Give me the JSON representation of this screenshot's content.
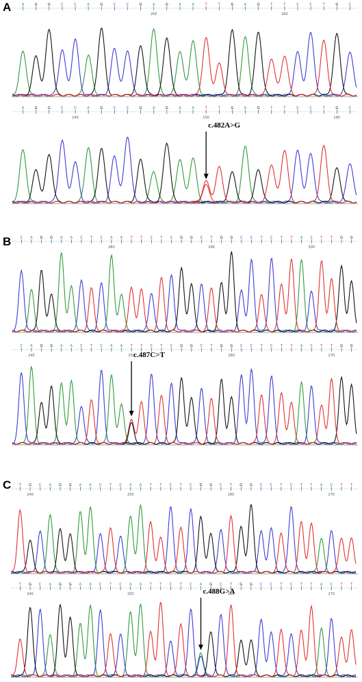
{
  "colors": {
    "A": "#2e9b3a",
    "C": "#3b3bd6",
    "G": "#111111",
    "T": "#e03030"
  },
  "panels": [
    {
      "letter": "A",
      "tracks": [
        {
          "sequence": "AGGCCAGCCGAGAATTGAGTTCCTGC",
          "positions": [
            {
              "label": "250",
              "index": 10
            },
            {
              "label": "260",
              "index": 20
            }
          ]
        },
        {
          "sequence": "AGGCCAGCCGAGAATTGAGTTCCTGC",
          "positions": [
            {
              "label": "140",
              "index": 4
            },
            {
              "label": "150",
              "index": 14
            },
            {
              "label": "160",
              "index": 24
            }
          ],
          "mutation": {
            "label": "c.482A>G",
            "index": 14
          }
        }
      ]
    },
    {
      "letter": "B",
      "tracks": [
        {
          "sequence": "CAGGAACTCAATTCTCGGCTGGCCTCTTACTTGG",
          "positions": [
            {
              "label": "280",
              "index": 9
            },
            {
              "label": "290",
              "index": 19
            },
            {
              "label": "300",
              "index": 29
            }
          ]
        },
        {
          "sequence": "CAGGAACTCAATTCTCGGCTGGCCTCTTACTTGG",
          "positions": [
            {
              "label": "240",
              "index": 1
            },
            {
              "label": "250",
              "index": 11
            },
            {
              "label": "260",
              "index": 21
            },
            {
              "label": "270",
              "index": 31
            }
          ],
          "mutation": {
            "label": "c.487C>T",
            "index": 11
          }
        }
      ]
    },
    {
      "letter": "C",
      "tracks": [
        {
          "sequence": "TGCAGGAACTCAATTCTCGGCTGGCCTCTTACTT",
          "positions": [
            {
              "label": "240",
              "index": 1
            },
            {
              "label": "250",
              "index": 11
            },
            {
              "label": "260",
              "index": 21
            },
            {
              "label": "270",
              "index": 31
            }
          ]
        },
        {
          "sequence": "TGCAGGAACTCAATTCTCAGCTGGCCTCTTACTT",
          "positions": [
            {
              "label": "240",
              "index": 1
            },
            {
              "label": "250",
              "index": 11
            },
            {
              "label": "260",
              "index": 21
            },
            {
              "label": "270",
              "index": 31
            }
          ],
          "mutation": {
            "label": "c.488G>A",
            "index": 18
          }
        }
      ]
    }
  ]
}
